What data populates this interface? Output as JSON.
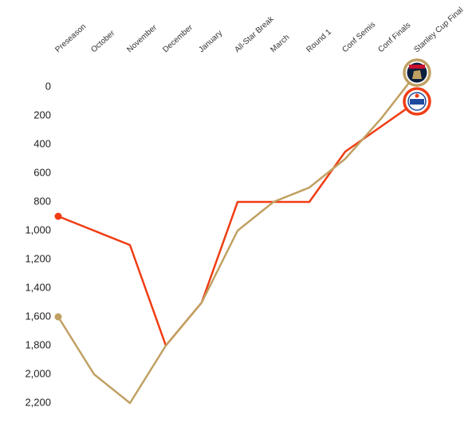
{
  "chart_data": {
    "type": "line",
    "categories": [
      "Preseason",
      "October",
      "November",
      "December",
      "January",
      "All-Star Break",
      "March",
      "Round 1",
      "Conf Semis",
      "Conf Finals",
      "Stanley Cup Final"
    ],
    "series": [
      {
        "color": "#f03c13",
        "values": [
          900,
          1000,
          1100,
          1800,
          1500,
          800,
          800,
          800,
          450,
          275,
          100
        ]
      },
      {
        "color": "#c0a062",
        "values": [
          1600,
          2000,
          2200,
          1800,
          1500,
          1000,
          800,
          700,
          500,
          220,
          -100
        ]
      }
    ],
    "ylim": [
      2200,
      -150
    ],
    "yticks": [
      0,
      200,
      400,
      600,
      800,
      {
        "value": 1000,
        "label": "1,000"
      },
      {
        "value": 1200,
        "label": "1,200"
      },
      {
        "value": 1400,
        "label": "1,400"
      },
      {
        "value": 1600,
        "label": "1,600"
      },
      {
        "value": 1800,
        "label": "1,800"
      },
      {
        "value": 2000,
        "label": "2,000"
      },
      {
        "value": 2200,
        "label": "2,200"
      }
    ],
    "grid": false
  }
}
